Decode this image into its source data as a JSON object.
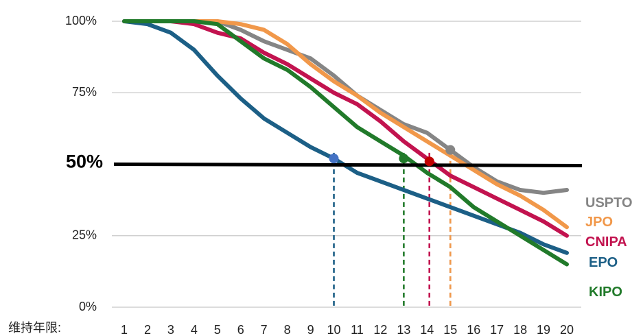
{
  "chart_data": {
    "type": "line",
    "xlabel": "维持年限:",
    "ylabel": "",
    "x": [
      1,
      2,
      3,
      4,
      5,
      6,
      7,
      8,
      9,
      10,
      11,
      12,
      13,
      14,
      15,
      16,
      17,
      18,
      19,
      20
    ],
    "ylim": [
      0,
      100
    ],
    "yticks": [
      {
        "value": 0,
        "label": "0%"
      },
      {
        "value": 25,
        "label": "25%"
      },
      {
        "value": 75,
        "label": "75%"
      },
      {
        "value": 100,
        "label": "100%"
      }
    ],
    "grid": true,
    "reference_line": {
      "value": 50,
      "label": "50%",
      "color": "#000000"
    },
    "series": [
      {
        "name": "USPTO",
        "color": "#858585",
        "values": [
          100,
          100,
          100,
          100,
          100,
          97,
          93,
          90,
          87,
          81,
          74,
          69,
          64,
          61,
          55,
          49,
          44,
          41,
          40,
          41
        ],
        "half_life": 15
      },
      {
        "name": "JPO",
        "color": "#F1984A",
        "values": [
          100,
          100,
          100,
          100,
          100,
          99,
          97,
          92,
          85,
          79,
          74,
          68,
          63,
          58,
          53,
          48,
          43,
          39,
          34,
          28
        ],
        "half_life": 15
      },
      {
        "name": "CNIPA",
        "color": "#C2134F",
        "values": [
          100,
          100,
          100,
          99,
          96,
          94,
          89,
          85,
          80,
          75,
          71,
          65,
          58,
          52,
          46,
          42,
          38,
          34,
          30,
          25
        ],
        "half_life": 14.1
      },
      {
        "name": "EPO",
        "color": "#1C5F86",
        "values": [
          100,
          99,
          96,
          90,
          81,
          73,
          66,
          61,
          56,
          52,
          47,
          44,
          41,
          38,
          35,
          32,
          29,
          26,
          22,
          19
        ],
        "half_life": 10
      },
      {
        "name": "KIPO",
        "color": "#217A2A",
        "values": [
          100,
          100,
          100,
          100,
          99,
          93,
          87,
          83,
          77,
          70,
          63,
          58,
          53,
          47,
          42,
          35,
          30,
          25,
          20,
          15
        ],
        "half_life": 13
      }
    ]
  }
}
